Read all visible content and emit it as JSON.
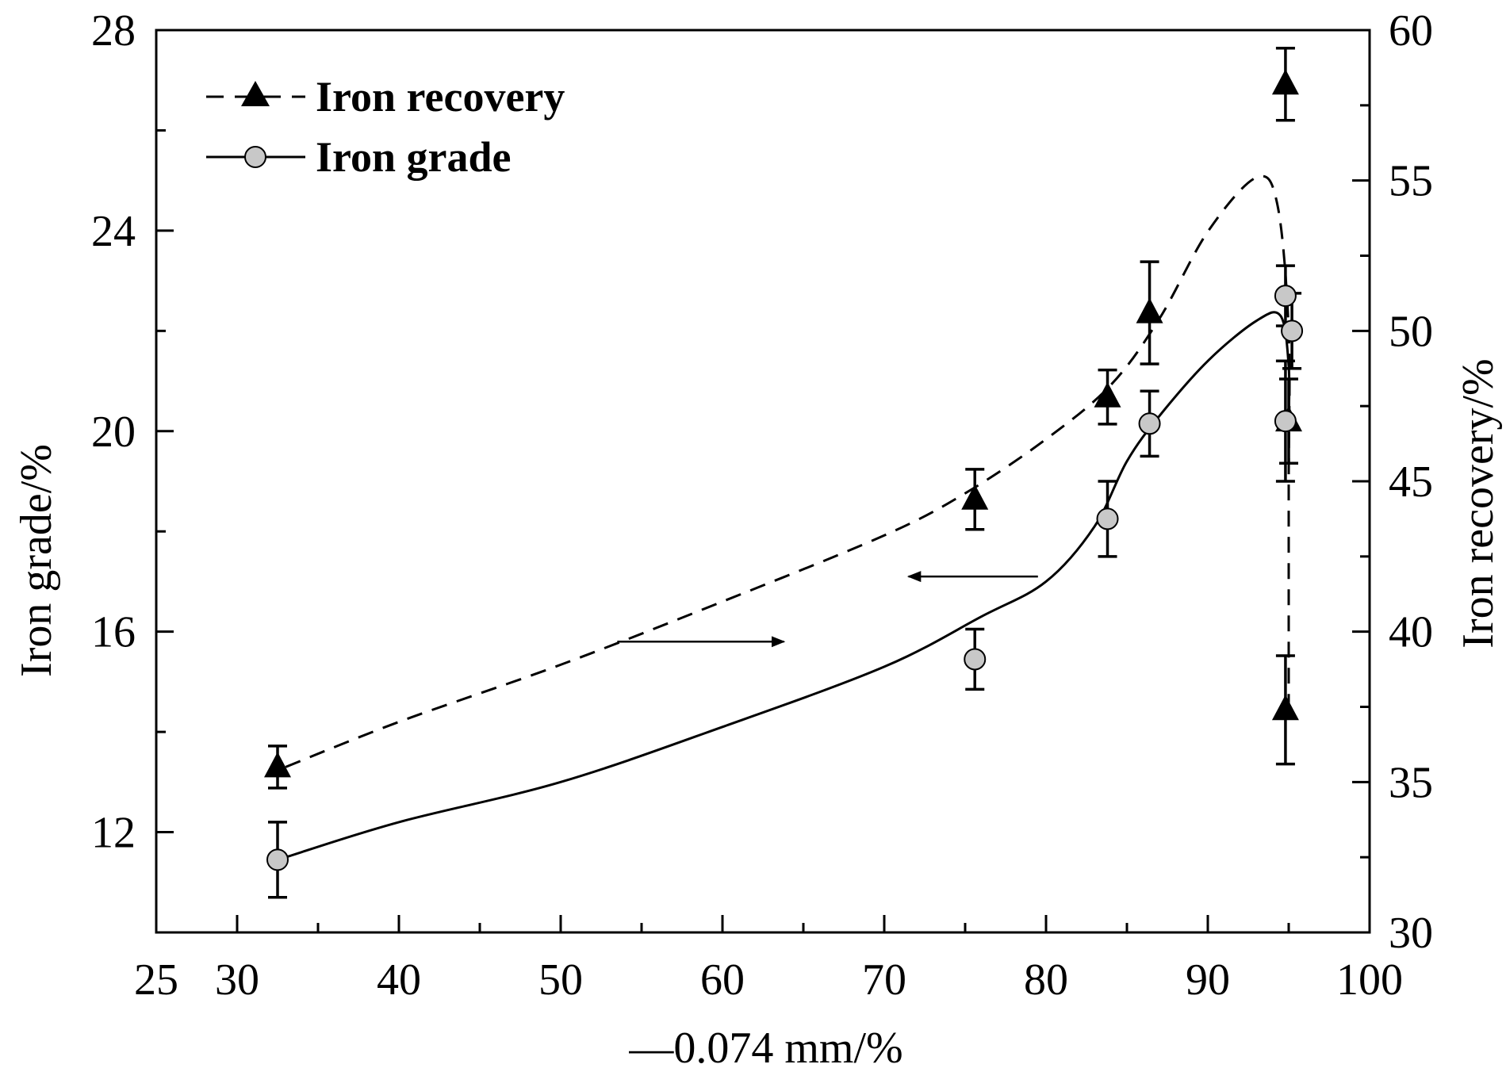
{
  "chart_data": {
    "type": "line",
    "title": "",
    "xlabel": "—0.074 mm/%",
    "ylabel_left": "Iron grade/%",
    "ylabel_right": "Iron recovery/%",
    "xlim": [
      25,
      100
    ],
    "ylim_left": [
      10,
      28
    ],
    "ylim_right": [
      30,
      60
    ],
    "x_ticks": [
      25,
      30,
      40,
      50,
      60,
      70,
      80,
      90,
      100
    ],
    "y_left_ticks": [
      12,
      16,
      20,
      24,
      28
    ],
    "y_right_ticks": [
      30,
      35,
      40,
      45,
      50,
      55,
      60
    ],
    "grid": false,
    "legend_position": "top-left",
    "series": [
      {
        "name": "Iron recovery",
        "axis": "right",
        "marker": "triangle",
        "line_style": "dashed",
        "points": [
          {
            "x": 32.5,
            "y": 35.5,
            "err": 0.7
          },
          {
            "x": 75.6,
            "y": 44.4,
            "err": 1.0
          },
          {
            "x": 83.8,
            "y": 47.8,
            "err": 0.9
          },
          {
            "x": 86.4,
            "y": 50.6,
            "err": 1.7
          },
          {
            "x": 94.8,
            "y": 58.2,
            "err": 1.2
          },
          {
            "x": 95.0,
            "y": 47.0,
            "err": 1.4
          },
          {
            "x": 94.8,
            "y": 37.4,
            "err": 1.8
          }
        ],
        "fit_curve": [
          [
            33,
            35.5
          ],
          [
            40,
            37.0
          ],
          [
            50,
            38.9
          ],
          [
            60,
            41.0
          ],
          [
            70,
            43.2
          ],
          [
            75,
            44.6
          ],
          [
            80,
            46.4
          ],
          [
            84,
            48.2
          ],
          [
            87,
            50.4
          ],
          [
            90,
            53.3
          ],
          [
            93,
            55.1
          ],
          [
            94.3,
            54.2
          ],
          [
            95.0,
            50.0
          ],
          [
            95.0,
            45.0
          ],
          [
            95.0,
            39.0
          ],
          [
            95.0,
            37.5
          ]
        ]
      },
      {
        "name": "Iron grade",
        "axis": "left",
        "marker": "circle",
        "line_style": "solid",
        "points": [
          {
            "x": 32.5,
            "y": 11.45,
            "err": 0.75
          },
          {
            "x": 75.6,
            "y": 15.45,
            "err": 0.6
          },
          {
            "x": 83.8,
            "y": 18.25,
            "err": 0.75
          },
          {
            "x": 86.4,
            "y": 20.15,
            "err": 0.65
          },
          {
            "x": 94.8,
            "y": 22.7,
            "err": 0.6
          },
          {
            "x": 95.2,
            "y": 22.0,
            "err": 0.75
          },
          {
            "x": 94.8,
            "y": 20.2,
            "err": 1.2
          }
        ],
        "fit_curve": [
          [
            33,
            11.5
          ],
          [
            40,
            12.2
          ],
          [
            50,
            13.0
          ],
          [
            60,
            14.1
          ],
          [
            70,
            15.3
          ],
          [
            76,
            16.3
          ],
          [
            80,
            17.0
          ],
          [
            83,
            18.1
          ],
          [
            85,
            19.4
          ],
          [
            87,
            20.3
          ],
          [
            90,
            21.4
          ],
          [
            93,
            22.2
          ],
          [
            94.5,
            22.3
          ],
          [
            95,
            21.3
          ],
          [
            95,
            20.2
          ]
        ]
      }
    ],
    "annotations": [
      {
        "type": "arrow",
        "direction": "left",
        "points_to_axis": "left",
        "from": [
          79.5,
          17.1
        ],
        "to": [
          71.5,
          17.1
        ]
      },
      {
        "type": "arrow",
        "direction": "right",
        "points_to_axis": "right",
        "from": [
          53.5,
          15.8
        ],
        "to": [
          63.8,
          15.8
        ]
      }
    ]
  }
}
